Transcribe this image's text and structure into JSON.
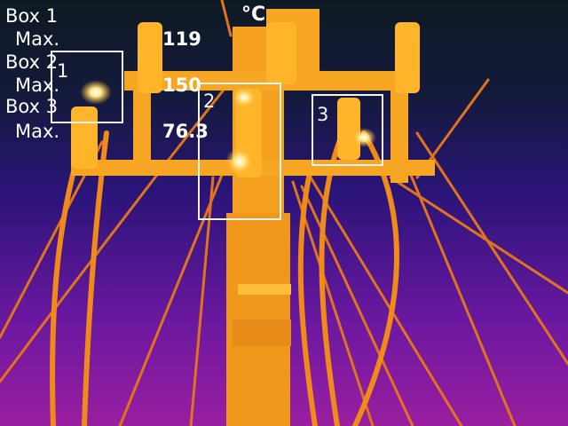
{
  "readout": {
    "unit": "°C",
    "items": [
      {
        "label": "Box 1",
        "max_label": "Max.",
        "max_value": "119"
      },
      {
        "label": "Box 2",
        "max_label": "Max.",
        "max_value": "150"
      },
      {
        "label": "Box 3",
        "max_label": "Max.",
        "max_value": "76.3"
      }
    ]
  },
  "boxes": [
    {
      "number": "1"
    },
    {
      "number": "2"
    },
    {
      "number": "3"
    }
  ],
  "colors": {
    "sky_top": "#0e1a22",
    "sky_mid": "#2a1478",
    "sky_bottom": "#9a1ea0",
    "hot": "#ff9a10",
    "hotter": "#ffd24a",
    "hottest": "#ffffff",
    "box_outline": "#f4f4f4"
  },
  "palette": "iron"
}
